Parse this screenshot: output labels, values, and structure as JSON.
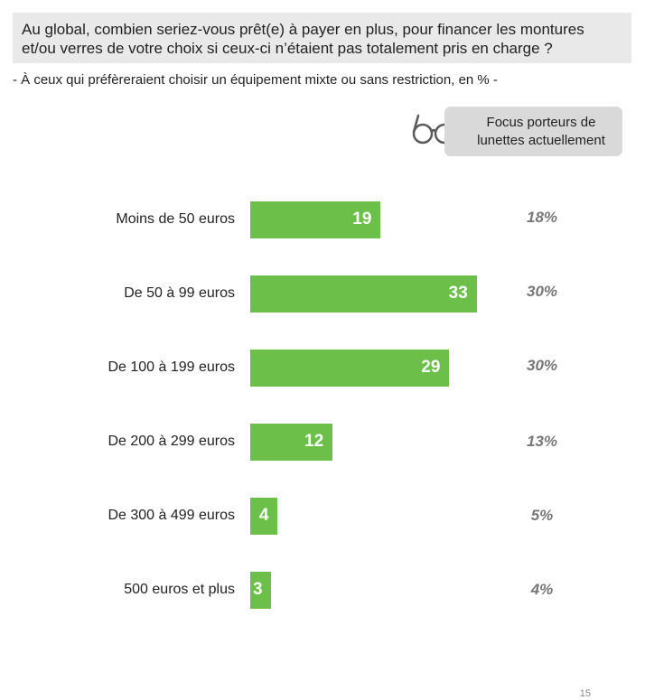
{
  "question": "Au global, combien seriez-vous prêt(e) à payer en plus, pour financer les montures et/ou verres de votre choix si ceux-ci n’étaient pas totalement pris en charge ?",
  "subtitle": "- À ceux qui préfèreraient choisir un équipement mixte ou sans restriction, en % -",
  "focus_badge": {
    "line1": "Focus porteurs de",
    "line2": "lunettes actuellement",
    "icon": "glasses-icon"
  },
  "colors": {
    "bar": "#6cc04a",
    "header_bg": "#e9e9e9",
    "badge_bg": "#d9d9d9",
    "focus_text": "#777777"
  },
  "page_number": "15",
  "chart_data": {
    "type": "bar",
    "orientation": "horizontal",
    "categories": [
      "Moins de 50 euros",
      "De 50 à 99 euros",
      "De 100 à 199 euros",
      "De 200 à 299 euros",
      "De 300 à 499 euros",
      "500 euros et plus"
    ],
    "values": [
      19,
      33,
      29,
      12,
      4,
      3
    ],
    "value_labels": [
      "19",
      "33",
      "29",
      "12",
      "4",
      "3"
    ],
    "focus_values": [
      "18%",
      "30%",
      "30%",
      "13%",
      "5%",
      "4%"
    ],
    "title": "",
    "xlabel": "",
    "ylabel": "",
    "grid": false
  }
}
